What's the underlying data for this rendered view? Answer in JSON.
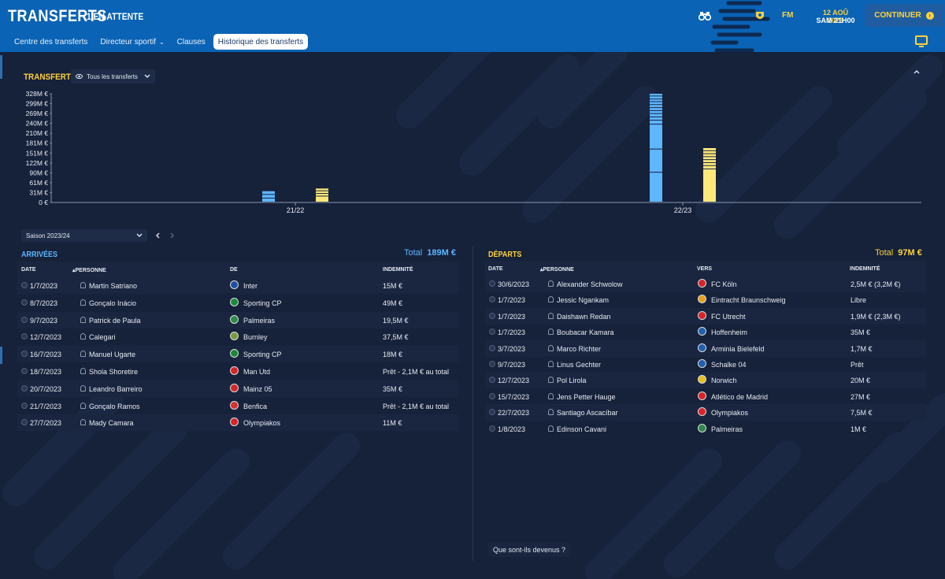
{
  "header": {
    "title": "TRANSFERTS",
    "subtitle": "1 EN ATTENTE",
    "date_line1": "12 AOÛ 2023",
    "date_line2": "SAM 21H00",
    "continue_label": "CONTINUER",
    "fm_label": "FM"
  },
  "nav_tabs": [
    {
      "label": "Centre des transferts",
      "active": false
    },
    {
      "label": "Directeur sportif",
      "active": false,
      "dropdown": true
    },
    {
      "label": "Clauses",
      "active": false
    },
    {
      "label": "Historique des transferts",
      "active": true
    }
  ],
  "chart_section": {
    "title": "TRANSFERTS",
    "filter_label": "Tous les transferts"
  },
  "chart_data": {
    "type": "bar",
    "title": "",
    "xlabel": "",
    "ylabel": "",
    "y_ticks": [
      "328M €",
      "299M €",
      "269M €",
      "240M €",
      "210M €",
      "181M €",
      "151M €",
      "122M €",
      "90M €",
      "61M €",
      "31M €",
      "0 €"
    ],
    "ylim": [
      0,
      328
    ],
    "categories": [
      "21/22",
      "22/23"
    ],
    "series": [
      {
        "color": "#5db6ff",
        "values": [
          34,
          328
        ],
        "segments": [
          [
            12,
            11,
            11
          ],
          [
            90,
            70,
            75,
            12,
            10,
            10,
            9,
            9,
            9,
            9,
            8,
            9,
            8
          ]
        ]
      },
      {
        "color": "#ffe87a",
        "values": [
          42,
          164
        ],
        "segments": [
          [
            18,
            8,
            8,
            8
          ],
          [
            100,
            10,
            9,
            9,
            9,
            9,
            9,
            9
          ]
        ]
      }
    ],
    "grid": false,
    "legend": "none"
  },
  "season": {
    "label": "Saison 2023/24"
  },
  "arrivals": {
    "title": "ARRIVÉES",
    "total_label": "Total",
    "total_value": "189M €",
    "columns": [
      "DATE",
      "PERSONNE",
      "DE",
      "INDEMNITÉ"
    ],
    "rows": [
      {
        "date": "1/7/2023",
        "person": "Martin Satriano",
        "club": "Inter",
        "fee": "15M €",
        "crest": "#1e4fa0"
      },
      {
        "date": "8/7/2023",
        "person": "Gonçalo Inácio",
        "club": "Sporting CP",
        "fee": "49M €",
        "crest": "#1a8a3a"
      },
      {
        "date": "9/7/2023",
        "person": "Patrick de Paula",
        "club": "Palmeiras",
        "fee": "19,5M €",
        "crest": "#2a8a4a"
      },
      {
        "date": "12/7/2023",
        "person": "Calegari",
        "club": "Burnley",
        "fee": "37,5M €",
        "crest": "#7a9a3a"
      },
      {
        "date": "16/7/2023",
        "person": "Manuel Ugarte",
        "club": "Sporting CP",
        "fee": "18M €",
        "crest": "#1a8a3a"
      },
      {
        "date": "18/7/2023",
        "person": "Shola Shoretire",
        "club": "Man Utd",
        "fee": "Prêt - 2,1M € au total",
        "crest": "#d6252a"
      },
      {
        "date": "20/7/2023",
        "person": "Leandro Barreiro",
        "club": "Mainz 05",
        "fee": "35M €",
        "crest": "#d6252a"
      },
      {
        "date": "21/7/2023",
        "person": "Gonçalo Ramos",
        "club": "Benfica",
        "fee": "Prêt - 2,1M € au total",
        "crest": "#d8302f"
      },
      {
        "date": "27/7/2023",
        "person": "Mady Camara",
        "club": "Olympiakos",
        "fee": "11M €",
        "crest": "#d6252a"
      }
    ]
  },
  "departures": {
    "title": "DÉPARTS",
    "total_label": "Total",
    "total_value": "97M €",
    "columns": [
      "DATE",
      "PERSONNE",
      "VERS",
      "INDEMNITÉ"
    ],
    "rows": [
      {
        "date": "30/6/2023",
        "person": "Alexander Schwolow",
        "club": "FC Köln",
        "fee": "2,5M € (3,2M €)",
        "crest": "#d6252a"
      },
      {
        "date": "1/7/2023",
        "person": "Jessic Ngankam",
        "club": "Eintracht Braunschweig",
        "fee": "Libre",
        "crest": "#e6a020"
      },
      {
        "date": "1/7/2023",
        "person": "Daishawn Redan",
        "club": "FC Utrecht",
        "fee": "1,9M € (2,3M €)",
        "crest": "#d6252a"
      },
      {
        "date": "1/7/2023",
        "person": "Boubacar Kamara",
        "club": "Hoffenheim",
        "fee": "35M €",
        "crest": "#1e5fb0"
      },
      {
        "date": "3/7/2023",
        "person": "Marco Richter",
        "club": "Arminia Bielefeld",
        "fee": "1,7M €",
        "crest": "#1e5fb0"
      },
      {
        "date": "9/7/2023",
        "person": "Linus Gechter",
        "club": "Schalke 04",
        "fee": "Prêt",
        "crest": "#1e5fb0"
      },
      {
        "date": "12/7/2023",
        "person": "Pol Lirola",
        "club": "Norwich",
        "fee": "20M €",
        "crest": "#e6c020"
      },
      {
        "date": "15/7/2023",
        "person": "Jens Petter Hauge",
        "club": "Atlético de Madrid",
        "fee": "27M €",
        "crest": "#d6252a"
      },
      {
        "date": "22/7/2023",
        "person": "Santiago Ascacíbar",
        "club": "Olympiakos",
        "fee": "7,5M €",
        "crest": "#d6252a"
      },
      {
        "date": "1/8/2023",
        "person": "Edinson Cavani",
        "club": "Palmeiras",
        "fee": "1M €",
        "crest": "#2a8a4a"
      }
    ]
  },
  "footer": {
    "label": "Que sont-ils devenus ?"
  }
}
